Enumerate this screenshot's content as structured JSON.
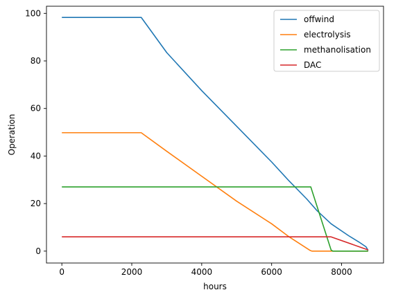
{
  "chart_data": {
    "type": "line",
    "title": "",
    "xlabel": "hours",
    "ylabel": "Operation",
    "xlim": [
      -440,
      9200
    ],
    "ylim": [
      -5,
      103
    ],
    "xticks": [
      0,
      2000,
      4000,
      6000,
      8000
    ],
    "yticks": [
      0,
      20,
      40,
      60,
      80,
      100
    ],
    "xtick_labels": [
      "0",
      "2000",
      "4000",
      "6000",
      "8000"
    ],
    "ytick_labels": [
      "0",
      "20",
      "40",
      "60",
      "80",
      "100"
    ],
    "legend_position": "top-right",
    "series": [
      {
        "name": "offwind",
        "color": "#1f77b4",
        "x": [
          0,
          2270,
          3000,
          4000,
          5000,
          6000,
          6500,
          7000,
          7300,
          7700,
          8200,
          8500,
          8700,
          8760
        ],
        "y": [
          98.3,
          98.3,
          83.5,
          67.5,
          52.5,
          37.5,
          29.5,
          22.0,
          17.0,
          11.5,
          6.5,
          3.8,
          1.8,
          0.3
        ]
      },
      {
        "name": "electrolysis",
        "color": "#ff7f0e",
        "x": [
          0,
          2270,
          3000,
          4000,
          5000,
          6000,
          6500,
          7100,
          7150,
          8760
        ],
        "y": [
          49.8,
          49.8,
          42.0,
          31.5,
          21.0,
          11.5,
          6.0,
          0.3,
          0.0,
          0.0
        ]
      },
      {
        "name": "methanolisation",
        "color": "#2ca02c",
        "x": [
          0,
          7120,
          7700,
          7750,
          8760
        ],
        "y": [
          27.0,
          27.0,
          0.5,
          0.0,
          0.0
        ]
      },
      {
        "name": "DAC",
        "color": "#d62728",
        "x": [
          0,
          7700,
          8760
        ],
        "y": [
          6.0,
          6.0,
          0.5
        ]
      }
    ]
  }
}
